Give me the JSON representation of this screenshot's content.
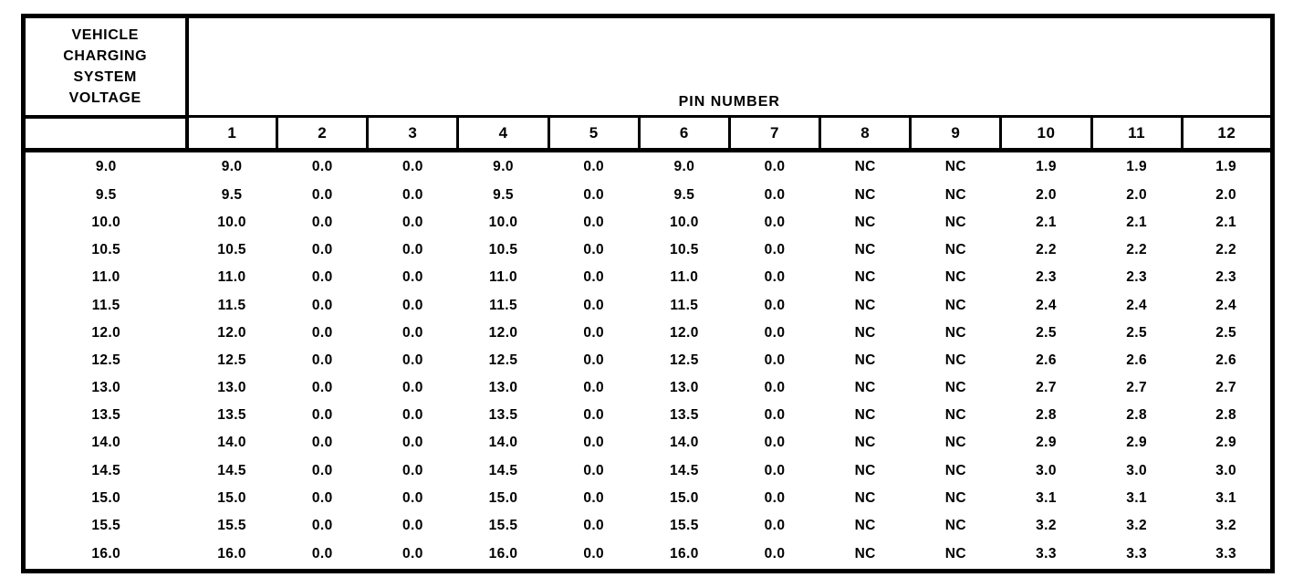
{
  "page": {
    "paper_color": "#ffffff",
    "ink_color": "#000000"
  },
  "table": {
    "corner_header_lines": [
      "VEHICLE",
      "CHARGING",
      "SYSTEM",
      "VOLTAGE"
    ],
    "span_header": "PIN NUMBER",
    "pin_columns": [
      "1",
      "2",
      "3",
      "4",
      "5",
      "6",
      "7",
      "8",
      "9",
      "10",
      "11",
      "12"
    ],
    "rows": [
      {
        "voltage": "9.0",
        "pins": [
          "9.0",
          "0.0",
          "0.0",
          "9.0",
          "0.0",
          "9.0",
          "0.0",
          "NC",
          "NC",
          "1.9",
          "1.9",
          "1.9"
        ]
      },
      {
        "voltage": "9.5",
        "pins": [
          "9.5",
          "0.0",
          "0.0",
          "9.5",
          "0.0",
          "9.5",
          "0.0",
          "NC",
          "NC",
          "2.0",
          "2.0",
          "2.0"
        ]
      },
      {
        "voltage": "10.0",
        "pins": [
          "10.0",
          "0.0",
          "0.0",
          "10.0",
          "0.0",
          "10.0",
          "0.0",
          "NC",
          "NC",
          "2.1",
          "2.1",
          "2.1"
        ]
      },
      {
        "voltage": "10.5",
        "pins": [
          "10.5",
          "0.0",
          "0.0",
          "10.5",
          "0.0",
          "10.5",
          "0.0",
          "NC",
          "NC",
          "2.2",
          "2.2",
          "2.2"
        ]
      },
      {
        "voltage": "11.0",
        "pins": [
          "11.0",
          "0.0",
          "0.0",
          "11.0",
          "0.0",
          "11.0",
          "0.0",
          "NC",
          "NC",
          "2.3",
          "2.3",
          "2.3"
        ]
      },
      {
        "voltage": "11.5",
        "pins": [
          "11.5",
          "0.0",
          "0.0",
          "11.5",
          "0.0",
          "11.5",
          "0.0",
          "NC",
          "NC",
          "2.4",
          "2.4",
          "2.4"
        ]
      },
      {
        "voltage": "12.0",
        "pins": [
          "12.0",
          "0.0",
          "0.0",
          "12.0",
          "0.0",
          "12.0",
          "0.0",
          "NC",
          "NC",
          "2.5",
          "2.5",
          "2.5"
        ]
      },
      {
        "voltage": "12.5",
        "pins": [
          "12.5",
          "0.0",
          "0.0",
          "12.5",
          "0.0",
          "12.5",
          "0.0",
          "NC",
          "NC",
          "2.6",
          "2.6",
          "2.6"
        ]
      },
      {
        "voltage": "13.0",
        "pins": [
          "13.0",
          "0.0",
          "0.0",
          "13.0",
          "0.0",
          "13.0",
          "0.0",
          "NC",
          "NC",
          "2.7",
          "2.7",
          "2.7"
        ]
      },
      {
        "voltage": "13.5",
        "pins": [
          "13.5",
          "0.0",
          "0.0",
          "13.5",
          "0.0",
          "13.5",
          "0.0",
          "NC",
          "NC",
          "2.8",
          "2.8",
          "2.8"
        ]
      },
      {
        "voltage": "14.0",
        "pins": [
          "14.0",
          "0.0",
          "0.0",
          "14.0",
          "0.0",
          "14.0",
          "0.0",
          "NC",
          "NC",
          "2.9",
          "2.9",
          "2.9"
        ]
      },
      {
        "voltage": "14.5",
        "pins": [
          "14.5",
          "0.0",
          "0.0",
          "14.5",
          "0.0",
          "14.5",
          "0.0",
          "NC",
          "NC",
          "3.0",
          "3.0",
          "3.0"
        ]
      },
      {
        "voltage": "15.0",
        "pins": [
          "15.0",
          "0.0",
          "0.0",
          "15.0",
          "0.0",
          "15.0",
          "0.0",
          "NC",
          "NC",
          "3.1",
          "3.1",
          "3.1"
        ]
      },
      {
        "voltage": "15.5",
        "pins": [
          "15.5",
          "0.0",
          "0.0",
          "15.5",
          "0.0",
          "15.5",
          "0.0",
          "NC",
          "NC",
          "3.2",
          "3.2",
          "3.2"
        ]
      },
      {
        "voltage": "16.0",
        "pins": [
          "16.0",
          "0.0",
          "0.0",
          "16.0",
          "0.0",
          "16.0",
          "0.0",
          "NC",
          "NC",
          "3.3",
          "3.3",
          "3.3"
        ]
      }
    ]
  }
}
